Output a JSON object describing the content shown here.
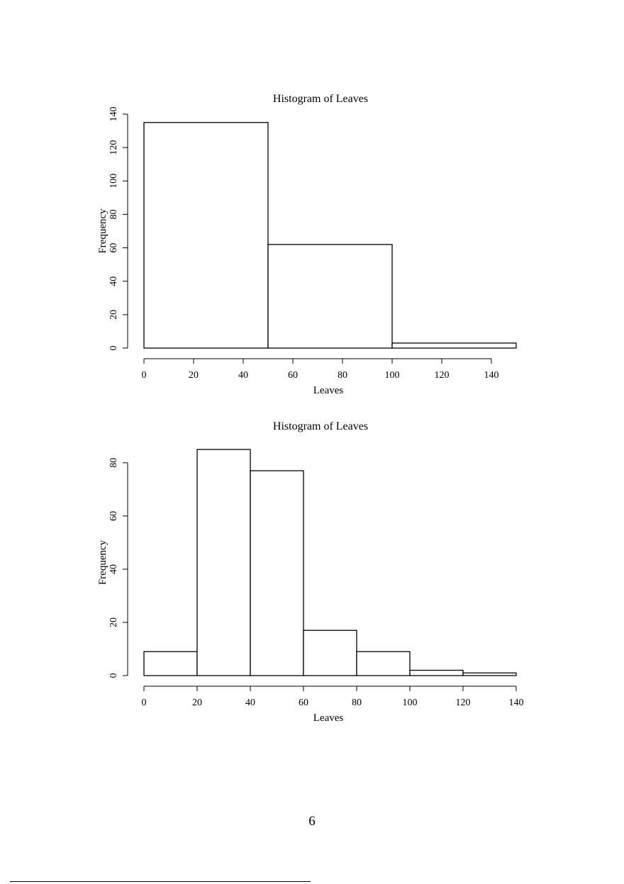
{
  "page": {
    "number": "6"
  },
  "chart_data": [
    {
      "type": "bar",
      "subtype": "histogram",
      "title": "Histogram of Leaves",
      "xlabel": "Leaves",
      "ylabel": "Frequency",
      "bins": [
        {
          "start": 0,
          "end": 50,
          "count": 135
        },
        {
          "start": 50,
          "end": 100,
          "count": 62
        },
        {
          "start": 100,
          "end": 150,
          "count": 3
        }
      ],
      "x_ticks": [
        0,
        20,
        40,
        60,
        80,
        100,
        120,
        140
      ],
      "y_ticks": [
        0,
        20,
        40,
        60,
        80,
        100,
        120,
        140
      ],
      "xlim": [
        0,
        150
      ],
      "ylim": [
        0,
        140
      ],
      "grid": false,
      "legend": "none"
    },
    {
      "type": "bar",
      "subtype": "histogram",
      "title": "Histogram of Leaves",
      "xlabel": "Leaves",
      "ylabel": "Frequency",
      "bins": [
        {
          "start": 0,
          "end": 20,
          "count": 9
        },
        {
          "start": 20,
          "end": 40,
          "count": 85
        },
        {
          "start": 40,
          "end": 60,
          "count": 77
        },
        {
          "start": 60,
          "end": 80,
          "count": 17
        },
        {
          "start": 80,
          "end": 100,
          "count": 9
        },
        {
          "start": 100,
          "end": 120,
          "count": 2
        },
        {
          "start": 120,
          "end": 140,
          "count": 1
        }
      ],
      "x_ticks": [
        0,
        20,
        40,
        60,
        80,
        100,
        120,
        140
      ],
      "y_ticks": [
        0,
        20,
        40,
        60,
        80
      ],
      "xlim": [
        0,
        140
      ],
      "ylim": [
        0,
        85
      ],
      "grid": false,
      "legend": "none"
    }
  ]
}
